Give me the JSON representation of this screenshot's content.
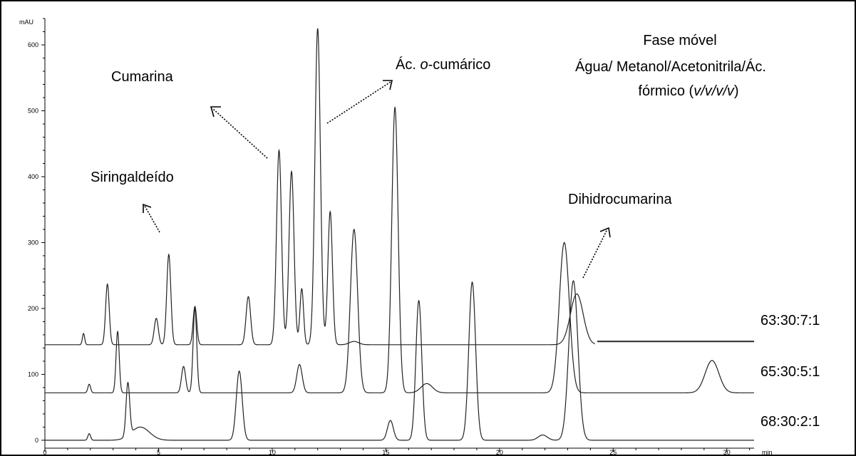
{
  "chart_data": {
    "type": "line",
    "x_unit": "min",
    "y_unit": "mAU",
    "xlim": [
      0,
      31.2
    ],
    "ylim": [
      -12,
      640
    ],
    "x_ticks": [
      0,
      5,
      10,
      15,
      20,
      25,
      30
    ],
    "y_ticks": [
      0,
      100,
      200,
      300,
      400,
      500,
      600
    ],
    "grid": false,
    "series": [
      {
        "name": "63:30:7:1",
        "baseline": 145,
        "end_x": 24.2,
        "tail": {
          "x_start": 24.3,
          "x_end": 31.2,
          "y": 150
        },
        "color": "#222222",
        "peaks": [
          {
            "x": 1.7,
            "y": 162,
            "w": 0.05
          },
          {
            "x": 2.75,
            "y": 237,
            "w": 0.08
          },
          {
            "x": 4.9,
            "y": 185,
            "w": 0.09
          },
          {
            "x": 5.45,
            "y": 282,
            "w": 0.09
          },
          {
            "x": 6.6,
            "y": 203,
            "w": 0.08
          },
          {
            "x": 8.95,
            "y": 218,
            "w": 0.1
          },
          {
            "x": 10.3,
            "y": 440,
            "w": 0.11
          },
          {
            "x": 10.85,
            "y": 408,
            "w": 0.11
          },
          {
            "x": 11.3,
            "y": 230,
            "w": 0.08
          },
          {
            "x": 12.0,
            "y": 625,
            "w": 0.12
          },
          {
            "x": 12.55,
            "y": 347,
            "w": 0.1
          },
          {
            "x": 13.6,
            "y": 150,
            "w": 0.2
          },
          {
            "x": 23.4,
            "y": 222,
            "w": 0.28
          }
        ]
      },
      {
        "name": "65:30:5:1",
        "baseline": 72,
        "end_x": 31.2,
        "color": "#222222",
        "peaks": [
          {
            "x": 1.95,
            "y": 85,
            "w": 0.06
          },
          {
            "x": 3.2,
            "y": 165,
            "w": 0.07
          },
          {
            "x": 6.1,
            "y": 112,
            "w": 0.09
          },
          {
            "x": 6.6,
            "y": 200,
            "w": 0.08
          },
          {
            "x": 11.2,
            "y": 115,
            "w": 0.12
          },
          {
            "x": 13.6,
            "y": 320,
            "w": 0.16
          },
          {
            "x": 15.4,
            "y": 505,
            "w": 0.14
          },
          {
            "x": 16.8,
            "y": 86,
            "w": 0.25
          },
          {
            "x": 22.85,
            "y": 300,
            "w": 0.22
          },
          {
            "x": 29.35,
            "y": 121,
            "w": 0.3
          }
        ]
      },
      {
        "name": "68:30:2:1",
        "baseline": 0,
        "end_x": 31.2,
        "color": "#222222",
        "peaks": [
          {
            "x": 1.95,
            "y": 10,
            "w": 0.06
          },
          {
            "x": 3.65,
            "y": 80,
            "w": 0.08
          },
          {
            "x": 4.2,
            "y": 20,
            "w": 0.4
          },
          {
            "x": 8.55,
            "y": 105,
            "w": 0.13
          },
          {
            "x": 15.2,
            "y": 30,
            "w": 0.13
          },
          {
            "x": 16.45,
            "y": 212,
            "w": 0.13
          },
          {
            "x": 18.8,
            "y": 240,
            "w": 0.15
          },
          {
            "x": 21.9,
            "y": 8,
            "w": 0.2
          },
          {
            "x": 23.25,
            "y": 242,
            "w": 0.2
          }
        ]
      }
    ],
    "annotations": [
      {
        "text": "Cumarina"
      },
      {
        "text": "Siringaldeído"
      },
      {
        "text": "Ác. ",
        "italic": "o",
        "rest": "-cumárico"
      },
      {
        "text": "Dihidrocumarina"
      },
      {
        "text": "Fase móvel"
      },
      {
        "text": "Água/ Metanol/Acetonitrila/Ác."
      },
      {
        "text": "fórmico (",
        "italic": "v/v/v/v",
        "rest": ")"
      }
    ]
  }
}
